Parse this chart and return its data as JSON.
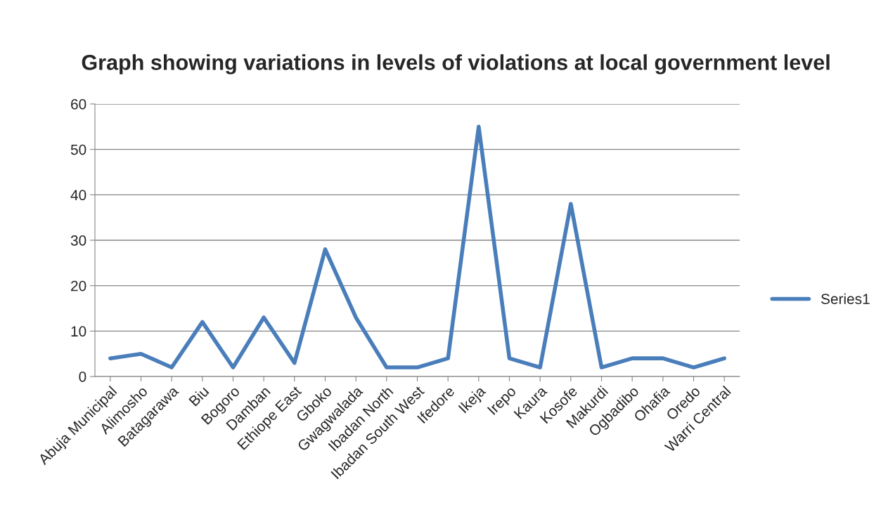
{
  "chart_data": {
    "type": "line",
    "title": "Graph showing variations in levels of violations at local government level",
    "categories": [
      "Abuja Municipal",
      "Alimosho",
      "Batagarawa",
      "Biu",
      "Bogoro",
      "Damban",
      "Ethiope East",
      "Gboko",
      "Gwagwalada",
      "Ibadan North",
      "Ibadan South West",
      "Ifedore",
      "Ikeja",
      "Irepo",
      "Kaura",
      "Kosofe",
      "Makurdi",
      "Ogbadibo",
      "Ohafia",
      "Oredo",
      "Warri Central"
    ],
    "series": [
      {
        "name": "Series1",
        "color": "#4a7ebb",
        "values": [
          4,
          5,
          2,
          12,
          2,
          13,
          3,
          28,
          13,
          2,
          2,
          4,
          55,
          4,
          2,
          38,
          2,
          4,
          4,
          2,
          4
        ]
      }
    ],
    "ylim": [
      0,
      60
    ],
    "yticks": [
      0,
      10,
      20,
      30,
      40,
      50,
      60
    ],
    "grid": "y",
    "legend": "right",
    "marker": "none",
    "line_style": "solid"
  }
}
